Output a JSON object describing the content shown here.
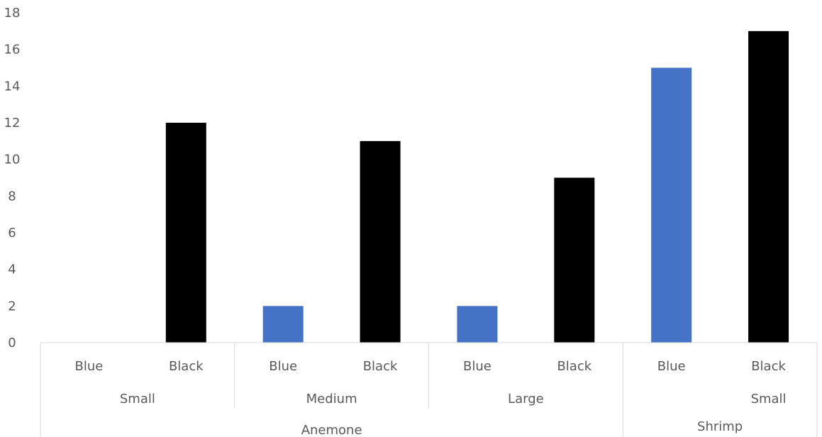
{
  "chart_data": {
    "type": "bar",
    "title": "",
    "xlabel": "",
    "ylabel": "",
    "ylim": [
      0,
      18
    ],
    "yticks": [
      0,
      2,
      4,
      6,
      8,
      10,
      12,
      14,
      16,
      18
    ],
    "grid": false,
    "legend": "none",
    "categories": [
      {
        "color": "Blue",
        "size": "Small",
        "group": "Anemone"
      },
      {
        "color": "Black",
        "size": "Small",
        "group": "Anemone"
      },
      {
        "color": "Blue",
        "size": "Medium",
        "group": "Anemone"
      },
      {
        "color": "Black",
        "size": "Medium",
        "group": "Anemone"
      },
      {
        "color": "Blue",
        "size": "Large",
        "group": "Anemone"
      },
      {
        "color": "Black",
        "size": "Large",
        "group": "Anemone"
      },
      {
        "color": "Blue",
        "size": "Small",
        "group": "Shrimp"
      },
      {
        "color": "Black",
        "size": "Small",
        "group": "Shrimp"
      }
    ],
    "values": [
      0,
      12,
      2,
      11,
      2,
      9,
      15,
      17
    ],
    "level2_labels": [
      "Small",
      "Medium",
      "Large",
      "Small"
    ],
    "level3_labels": [
      "Anemone",
      "Shrimp"
    ],
    "bar_colors": {
      "Blue": "#4472c4",
      "Black": "#000000"
    },
    "axis_line_color": "#d9d9d9",
    "text_color": "#595959"
  }
}
